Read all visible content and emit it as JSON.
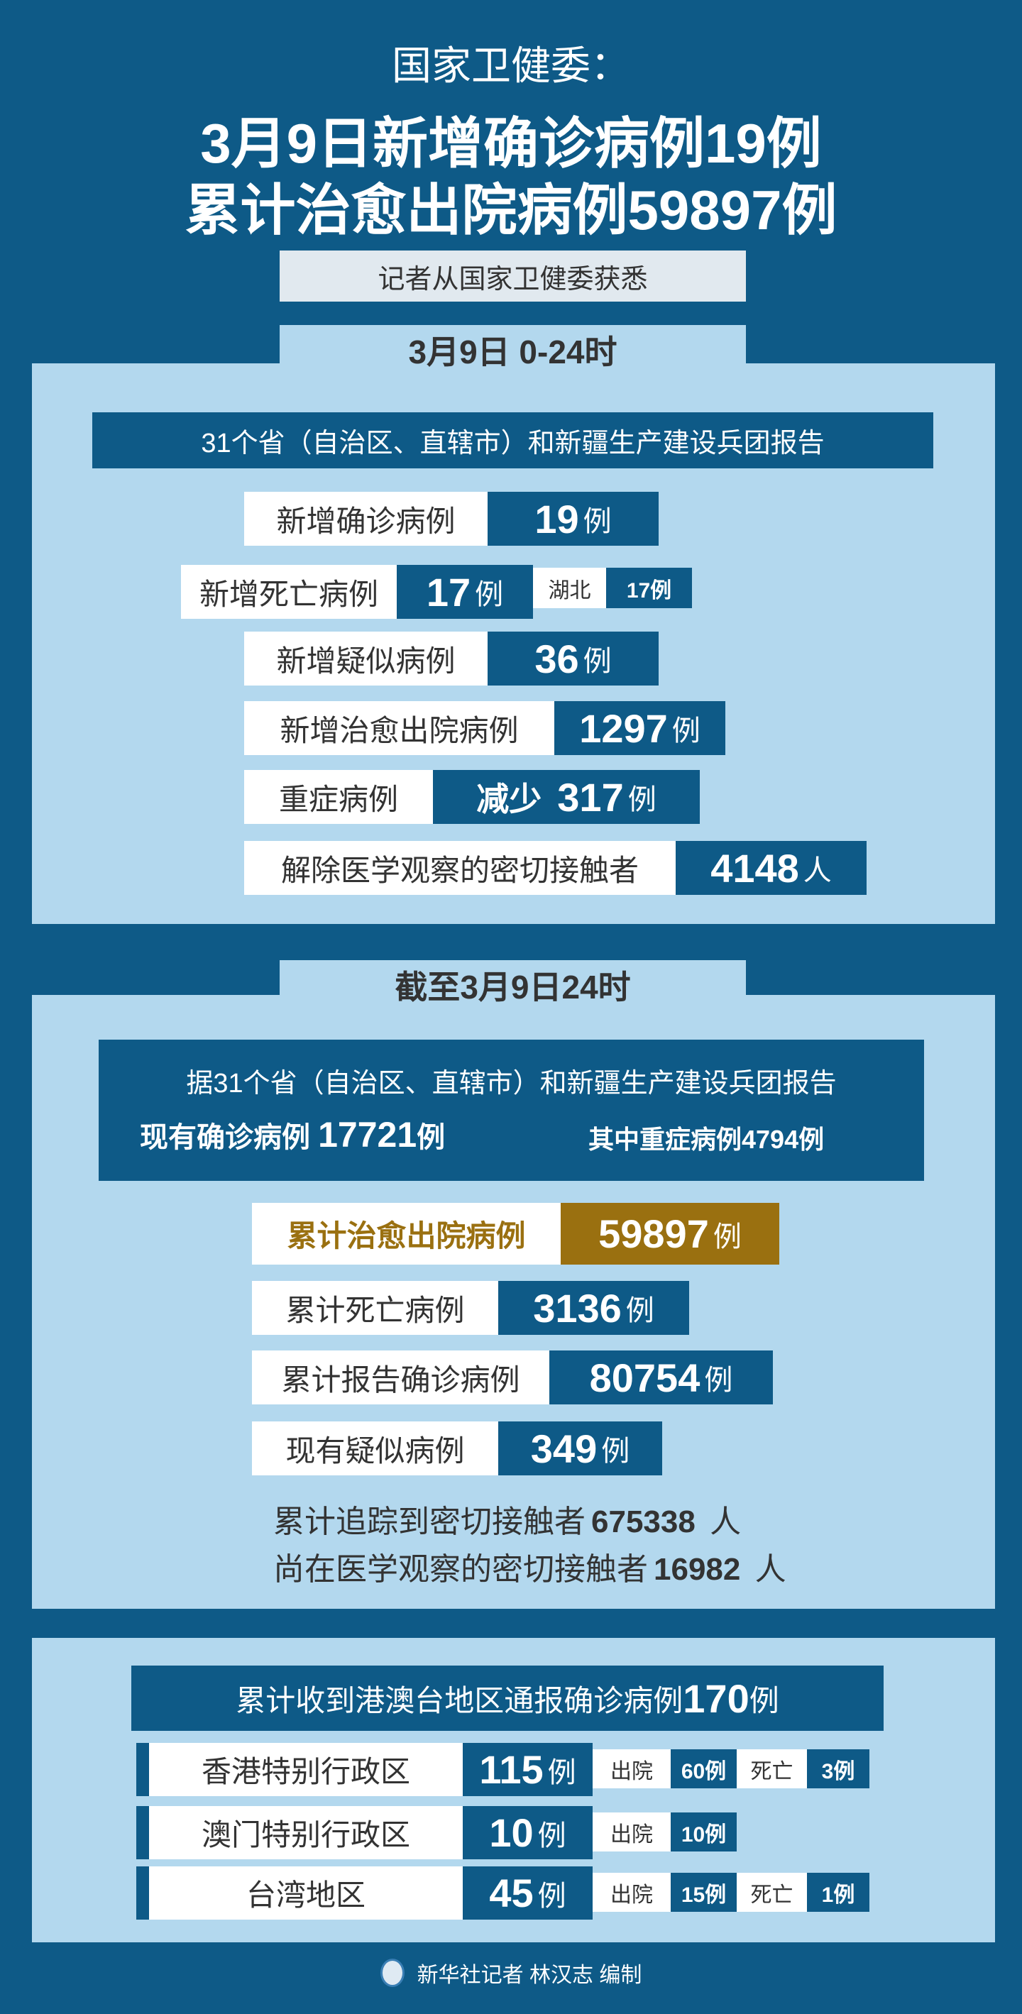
{
  "header": {
    "source": "国家卫健委：",
    "headline1": "3月9日新增确诊病例19例",
    "headline2": "累计治愈出院病例59897例",
    "subtitle": "记者从国家卫健委获悉"
  },
  "colors": {
    "dark_blue": "#0e5a87",
    "light_blue": "#b3d8ee",
    "gold": "#9a7010"
  },
  "daily": {
    "tab": "3月9日  0-24时",
    "banner": "31个省（自治区、直辖市）和新疆生产建设兵团报告",
    "rows": [
      {
        "label": "新增确诊病例",
        "value": "19",
        "unit": "例"
      },
      {
        "label": "新增死亡病例",
        "value": "17",
        "unit": "例",
        "extra_label": "湖北",
        "extra_value": "17例"
      },
      {
        "label": "新增疑似病例",
        "value": "36",
        "unit": "例"
      },
      {
        "label": "新增治愈出院病例",
        "value": "1297",
        "unit": "例"
      },
      {
        "label": "重症病例",
        "prefix": "减少",
        "value": "317",
        "unit": "例"
      },
      {
        "label": "解除医学观察的密切接触者",
        "value": "4148",
        "unit": "人"
      }
    ]
  },
  "cumulative": {
    "tab": "截至3月9日24时",
    "banner": "据31个省（自治区、直辖市）和新疆生产建设兵团报告",
    "current_label": "现有确诊病例",
    "current_value": "17721",
    "current_unit": "例",
    "severe": "其中重症病例4794例",
    "rows": [
      {
        "label": "累计治愈出院病例",
        "value": "59897",
        "unit": "例"
      },
      {
        "label": "累计死亡病例",
        "value": "3136",
        "unit": "例"
      },
      {
        "label": "累计报告确诊病例",
        "value": "80754",
        "unit": "例"
      },
      {
        "label": "现有疑似病例",
        "value": "349",
        "unit": "例"
      }
    ],
    "line1_label": "累计追踪到密切接触者",
    "line1_value": "675338",
    "line1_unit": "人",
    "line2_label": "尚在医学观察的密切接触者",
    "line2_value": "16982",
    "line2_unit": "人"
  },
  "regions": {
    "banner_text": "累计收到港澳台地区通报确诊病例",
    "banner_value": "170",
    "banner_unit": "例",
    "rows": [
      {
        "name": "香港特别行政区",
        "value": "115",
        "unit": "例",
        "discharged_label": "出院",
        "discharged": "60例",
        "death_label": "死亡",
        "deaths": "3例"
      },
      {
        "name": "澳门特别行政区",
        "value": "10",
        "unit": "例",
        "discharged_label": "出院",
        "discharged": "10例"
      },
      {
        "name": "台湾地区",
        "value": "45",
        "unit": "例",
        "discharged_label": "出院",
        "discharged": "15例",
        "death_label": "死亡",
        "deaths": "1例"
      }
    ]
  },
  "footer": {
    "credit": "新华社记者 林汉志 编制",
    "logo_icon": "xinhua-logo-icon"
  }
}
